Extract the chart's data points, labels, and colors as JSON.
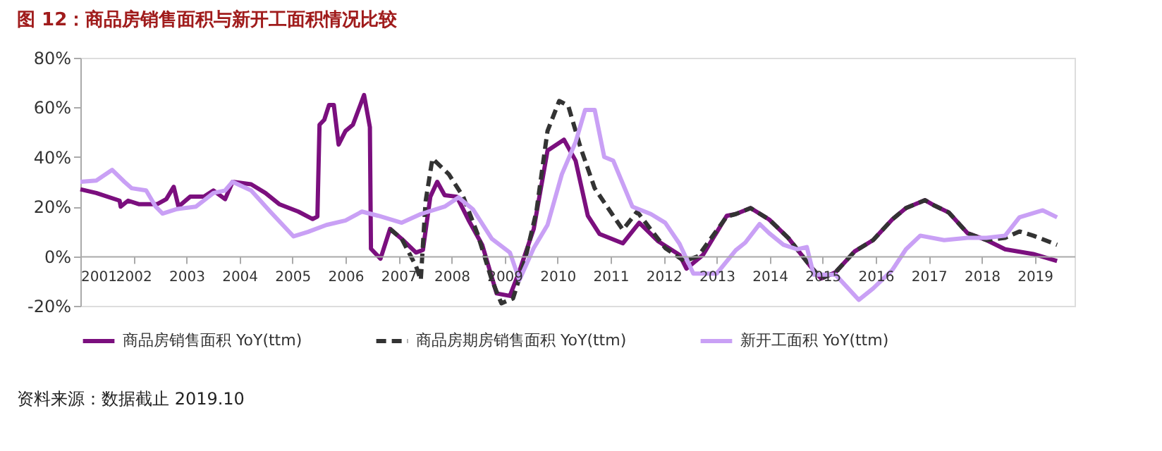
{
  "chart_data": {
    "type": "line",
    "title": "图 12：商品房销售面积与新开工面积情况比较",
    "xlim": [
      2001,
      2019.75
    ],
    "xticks": [
      2001,
      2002,
      2003,
      2004,
      2005,
      2006,
      2007,
      2008,
      2009,
      2010,
      2011,
      2012,
      2013,
      2014,
      2015,
      2016,
      2017,
      2018,
      2019
    ],
    "ylim": [
      -20,
      80
    ],
    "yticks": [
      {
        "value": -20,
        "label": "-20%"
      },
      {
        "value": 0,
        "label": "0%"
      },
      {
        "value": 20,
        "label": "20%"
      },
      {
        "value": 40,
        "label": "40%"
      },
      {
        "value": 60,
        "label": "60%"
      },
      {
        "value": 80,
        "label": "80%"
      }
    ],
    "grid": false,
    "legend": "bottom",
    "marker": "none",
    "annotations": [
      "资料来源：数据截止 2019.10"
    ],
    "series": [
      {
        "name": "商品房销售面积 YoY(ttm)",
        "color": "#7b0f7e",
        "line_style": "solid",
        "x": [
          2001.0,
          2001.3,
          2001.74,
          2001.76,
          2001.9,
          2002.1,
          2002.45,
          2002.62,
          2002.76,
          2002.85,
          2003.07,
          2003.33,
          2003.51,
          2003.73,
          2003.87,
          2004.22,
          2004.49,
          2004.75,
          2005.11,
          2005.38,
          2005.47,
          2005.51,
          2005.6,
          2005.69,
          2005.78,
          2005.87,
          2006.0,
          2006.14,
          2006.35,
          2006.46,
          2006.48,
          2006.66,
          2006.84,
          2007.06,
          2007.33,
          2007.46,
          2007.6,
          2007.73,
          2007.87,
          2008.1,
          2008.32,
          2008.58,
          2008.85,
          2009.1,
          2009.28,
          2009.55,
          2009.81,
          2010.12,
          2010.34,
          2010.57,
          2010.79,
          2011.23,
          2011.54,
          2011.9,
          2012.3,
          2012.43,
          2012.74,
          2013.19,
          2013.36,
          2013.64,
          2013.99,
          2014.35,
          2014.79,
          2014.97,
          2015.24,
          2015.6,
          2015.95,
          2016.31,
          2016.57,
          2016.93,
          2017.11,
          2017.38,
          2017.73,
          2018.09,
          2018.44,
          2018.97,
          2019.42
        ],
        "values": [
          27,
          25.5,
          22.4,
          20,
          22.4,
          21,
          21,
          23,
          28,
          20,
          24,
          24,
          26.5,
          23,
          30,
          29,
          25.5,
          21,
          18,
          15,
          16,
          53,
          55,
          61,
          61,
          45,
          50.5,
          53,
          65,
          52,
          3,
          -1,
          11,
          7,
          1.5,
          2.5,
          24,
          30,
          24.6,
          24,
          14.6,
          4.5,
          -15,
          -16,
          -6,
          11,
          42.6,
          47,
          38.5,
          16.3,
          9,
          5.2,
          13.5,
          6,
          0.5,
          -5,
          0.5,
          16.3,
          17,
          19.4,
          14.8,
          7.4,
          -4.6,
          -9,
          -6.5,
          1.9,
          6.5,
          14.8,
          19.4,
          22.6,
          20.4,
          17.6,
          9.3,
          6.5,
          2.8,
          0.9,
          -1.9
        ]
      },
      {
        "name": "商品房期房销售面积 YoY(ttm)",
        "color": "#333333",
        "line_style": "dashed",
        "x": [
          2006.84,
          2007.06,
          2007.33,
          2007.42,
          2007.51,
          2007.64,
          2007.95,
          2008.22,
          2008.49,
          2008.76,
          2008.94,
          2009.16,
          2009.38,
          2009.6,
          2009.81,
          2010.03,
          2010.2,
          2010.43,
          2010.7,
          2011.05,
          2011.23,
          2011.5,
          2011.76,
          2012.03,
          2012.39,
          2012.65,
          2013.19,
          2013.36,
          2013.64,
          2013.99,
          2014.35,
          2014.79,
          2014.97,
          2015.24,
          2015.6,
          2015.95,
          2016.31,
          2016.57,
          2016.93,
          2017.11,
          2017.38,
          2017.73,
          2018.09,
          2018.44,
          2018.71,
          2018.97,
          2019.42
        ],
        "values": [
          11,
          7,
          -4,
          -9.6,
          22,
          39.4,
          33,
          24,
          9,
          -9.6,
          -19,
          -17,
          -2,
          18,
          50.5,
          62.6,
          60.7,
          44,
          27.4,
          16.3,
          10.7,
          18,
          10.7,
          3.3,
          -2,
          0,
          16,
          17,
          19.4,
          14.8,
          7.4,
          -4.6,
          -9,
          -6.5,
          1.9,
          6.5,
          14.8,
          19.4,
          22.6,
          20.4,
          17.6,
          9.3,
          6.5,
          7.4,
          10,
          8.3,
          4.6
        ]
      },
      {
        "name": "新开工面积 YoY(ttm)",
        "color": "#c9a0f5",
        "line_style": "solid",
        "x": [
          2001.0,
          2001.3,
          2001.6,
          2001.83,
          2001.97,
          2002.24,
          2002.42,
          2002.55,
          2002.82,
          2003.18,
          2003.51,
          2003.73,
          2003.87,
          2004.22,
          2004.58,
          2005.02,
          2005.29,
          2005.64,
          2006.0,
          2006.31,
          2006.62,
          2007.06,
          2007.42,
          2007.87,
          2008.13,
          2008.4,
          2008.76,
          2009.1,
          2009.28,
          2009.55,
          2009.81,
          2010.08,
          2010.34,
          2010.52,
          2010.7,
          2010.88,
          2011.05,
          2011.41,
          2011.76,
          2012.03,
          2012.3,
          2012.56,
          2013.0,
          2013.36,
          2013.54,
          2013.81,
          2013.99,
          2014.26,
          2014.52,
          2014.7,
          2014.83,
          2015.24,
          2015.68,
          2015.95,
          2016.31,
          2016.57,
          2016.84,
          2017.29,
          2017.73,
          2018.09,
          2018.44,
          2018.71,
          2019.15,
          2019.42
        ],
        "values": [
          30,
          30.5,
          34.8,
          30,
          27.4,
          26.5,
          20,
          17.2,
          19,
          20,
          25.5,
          26.5,
          30,
          26.5,
          18,
          8,
          9.8,
          12.6,
          14.4,
          18,
          16.3,
          13.5,
          17,
          20,
          23.7,
          19,
          7,
          1.5,
          -9.6,
          3.3,
          12.6,
          33,
          46,
          59,
          59,
          40,
          38.5,
          20,
          17,
          13.5,
          5,
          -7,
          -7,
          2.4,
          5.5,
          13,
          9.3,
          4.6,
          2.8,
          3.7,
          -7.4,
          -7.4,
          -17.6,
          -13,
          -5.6,
          2.8,
          8.3,
          6.5,
          7.4,
          7.4,
          8.3,
          15.7,
          18.5,
          15.7
        ]
      }
    ]
  }
}
